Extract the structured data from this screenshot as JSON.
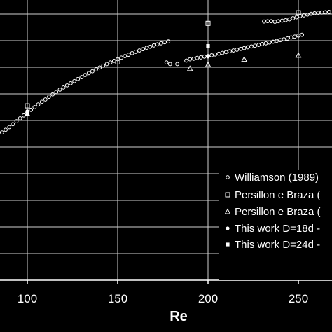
{
  "chart_data": {
    "type": "scatter",
    "title": "",
    "xlabel": "Re",
    "ylabel": "",
    "xlim": [
      85,
      270
    ],
    "ylim": [
      0,
      100
    ],
    "grid": true,
    "xticks": [
      100,
      150,
      200,
      250
    ],
    "ygrid": [
      10,
      20,
      30,
      40,
      50,
      60,
      70,
      80,
      90,
      100
    ],
    "legend_position": "right",
    "series": [
      {
        "name": "Williamson (1989)",
        "marker": "open-circle",
        "points": [
          [
            86,
            55.5
          ],
          [
            88,
            56.5
          ],
          [
            90,
            57.5
          ],
          [
            92,
            58.6
          ],
          [
            94,
            59.7
          ],
          [
            96,
            60.8
          ],
          [
            98,
            61.9
          ],
          [
            100,
            63.0
          ],
          [
            102,
            64.0
          ],
          [
            104,
            65.0
          ],
          [
            106,
            66.0
          ],
          [
            108,
            67.0
          ],
          [
            110,
            67.9
          ],
          [
            112,
            68.9
          ],
          [
            114,
            69.8
          ],
          [
            116,
            70.7
          ],
          [
            118,
            71.6
          ],
          [
            120,
            72.4
          ],
          [
            122,
            73.2
          ],
          [
            124,
            74.0
          ],
          [
            126,
            74.8
          ],
          [
            128,
            75.6
          ],
          [
            130,
            76.3
          ],
          [
            132,
            77.1
          ],
          [
            134,
            77.8
          ],
          [
            136,
            78.5
          ],
          [
            138,
            79.2
          ],
          [
            140,
            79.9
          ],
          [
            142,
            80.6
          ],
          [
            144,
            81.2
          ],
          [
            146,
            81.8
          ],
          [
            148,
            82.4
          ],
          [
            150,
            83.0
          ],
          [
            152,
            83.6
          ],
          [
            154,
            84.2
          ],
          [
            156,
            84.7
          ],
          [
            158,
            85.3
          ],
          [
            160,
            85.8
          ],
          [
            162,
            86.3
          ],
          [
            164,
            86.8
          ],
          [
            166,
            87.3
          ],
          [
            168,
            87.7
          ],
          [
            170,
            88.2
          ],
          [
            172,
            88.6
          ],
          [
            174,
            89.0
          ],
          [
            176,
            89.4
          ],
          [
            178,
            89.7
          ],
          [
            177,
            81.8
          ],
          [
            179,
            81.2
          ],
          [
            183,
            81.2
          ],
          [
            188,
            82.5
          ],
          [
            190,
            83.0
          ],
          [
            192,
            83.2
          ],
          [
            194,
            83.5
          ],
          [
            196,
            83.7
          ],
          [
            198,
            84.0
          ],
          [
            200,
            84.2
          ],
          [
            202,
            84.5
          ],
          [
            204,
            84.8
          ],
          [
            206,
            85.1
          ],
          [
            208,
            85.4
          ],
          [
            210,
            85.7
          ],
          [
            212,
            86.0
          ],
          [
            214,
            86.3
          ],
          [
            216,
            86.6
          ],
          [
            218,
            86.9
          ],
          [
            220,
            87.2
          ],
          [
            222,
            87.5
          ],
          [
            224,
            87.8
          ],
          [
            226,
            88.1
          ],
          [
            228,
            88.4
          ],
          [
            230,
            88.7
          ],
          [
            232,
            89.0
          ],
          [
            234,
            89.3
          ],
          [
            236,
            89.6
          ],
          [
            238,
            89.9
          ],
          [
            240,
            90.2
          ],
          [
            242,
            90.5
          ],
          [
            244,
            90.8
          ],
          [
            246,
            91.2
          ],
          [
            248,
            91.5
          ],
          [
            250,
            91.9
          ],
          [
            252,
            92.2
          ],
          [
            231,
            97.2
          ],
          [
            233,
            97.3
          ],
          [
            235,
            97.3
          ],
          [
            237,
            97.1
          ],
          [
            239,
            97.3
          ],
          [
            241,
            97.5
          ],
          [
            243,
            97.7
          ],
          [
            245,
            98.0
          ],
          [
            247,
            98.4
          ],
          [
            249,
            98.8
          ],
          [
            251,
            99.2
          ],
          [
            253,
            99.5
          ],
          [
            255,
            99.8
          ],
          [
            257,
            100.1
          ],
          [
            259,
            100.3
          ],
          [
            261,
            100.5
          ],
          [
            263,
            100.6
          ],
          [
            265,
            100.7
          ],
          [
            267,
            100.8
          ]
        ]
      },
      {
        "name": "Persillon e Braza (",
        "marker": "open-square",
        "points": [
          [
            100,
            65.5
          ],
          [
            150,
            82.0
          ],
          [
            200,
            96.5
          ],
          [
            250,
            100.5
          ]
        ]
      },
      {
        "name": "Persillon e Braza (",
        "marker": "open-triangle",
        "points": [
          [
            100,
            62.5
          ],
          [
            190,
            79.5
          ],
          [
            200,
            81.0
          ],
          [
            220,
            83.0
          ],
          [
            250,
            84.5
          ]
        ]
      },
      {
        "name": "This work D=18d -",
        "marker": "filled-circle",
        "points": [
          [
            100,
            63.5
          ],
          [
            200,
            84.0
          ]
        ]
      },
      {
        "name": "This work D=24d -",
        "marker": "filled-square",
        "points": [
          [
            100,
            62.5
          ],
          [
            200,
            88.0
          ]
        ]
      }
    ]
  }
}
